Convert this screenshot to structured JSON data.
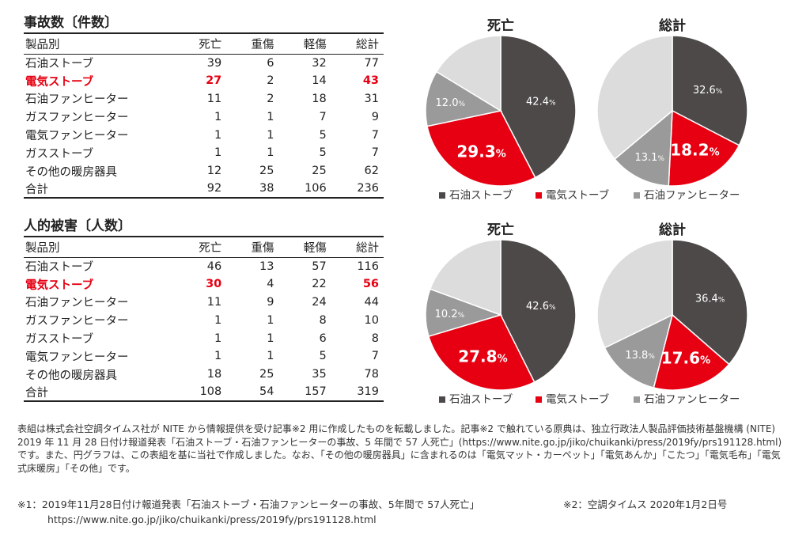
{
  "tables": [
    {
      "title": "事故数〔件数〕",
      "columns": [
        "製品別",
        "死亡",
        "重傷",
        "軽傷",
        "総計"
      ],
      "rows": [
        {
          "product": "石油ストーブ",
          "values": [
            39,
            6,
            32,
            77
          ],
          "highlight": false
        },
        {
          "product": "電気ストーブ",
          "values": [
            27,
            2,
            14,
            43
          ],
          "highlight": true
        },
        {
          "product": "石油ファンヒーター",
          "values": [
            11,
            2,
            18,
            31
          ],
          "highlight": false
        },
        {
          "product": "ガスファンヒーター",
          "values": [
            1,
            1,
            7,
            9
          ],
          "highlight": false
        },
        {
          "product": "電気ファンヒーター",
          "values": [
            1,
            1,
            5,
            7
          ],
          "highlight": false
        },
        {
          "product": "ガスストーブ",
          "values": [
            1,
            1,
            5,
            7
          ],
          "highlight": false
        },
        {
          "product": "その他の暖房器具",
          "values": [
            12,
            25,
            25,
            62
          ],
          "highlight": false
        },
        {
          "product": "合計",
          "values": [
            92,
            38,
            106,
            236
          ],
          "highlight": false
        }
      ]
    },
    {
      "title": "人的被害〔人数〕",
      "columns": [
        "製品別",
        "死亡",
        "重傷",
        "軽傷",
        "総計"
      ],
      "rows": [
        {
          "product": "石油ストーブ",
          "values": [
            46,
            13,
            57,
            116
          ],
          "highlight": false
        },
        {
          "product": "電気ストーブ",
          "values": [
            30,
            4,
            22,
            56
          ],
          "highlight": true
        },
        {
          "product": "石油ファンヒーター",
          "values": [
            11,
            9,
            24,
            44
          ],
          "highlight": false
        },
        {
          "product": "ガスファンヒーター",
          "values": [
            1,
            1,
            8,
            10
          ],
          "highlight": false
        },
        {
          "product": "ガスストーブ",
          "values": [
            1,
            1,
            6,
            8
          ],
          "highlight": false
        },
        {
          "product": "電気ファンヒーター",
          "values": [
            1,
            1,
            5,
            7
          ],
          "highlight": false
        },
        {
          "product": "その他の暖房器具",
          "values": [
            18,
            25,
            35,
            78
          ],
          "highlight": false
        },
        {
          "product": "合計",
          "values": [
            108,
            54,
            157,
            319
          ],
          "highlight": false
        }
      ]
    }
  ],
  "legend": [
    {
      "label": "石油ストーブ",
      "color": "#4d4949"
    },
    {
      "label": "電気ストーブ",
      "color": "#e60012"
    },
    {
      "label": "石油ファンヒーター",
      "color": "#9a9a9a"
    }
  ],
  "other_color": "#dcdcdc",
  "chart_data": [
    {
      "type": "pie",
      "title": "死亡",
      "group": "事故数",
      "labels": [
        "石油ストーブ",
        "電気ストーブ",
        "石油ファンヒーター",
        ""
      ],
      "values": [
        42.4,
        29.3,
        12.0,
        16.3
      ],
      "value_labels": [
        "42.4",
        "29.3",
        "12.0",
        ""
      ],
      "unit": "%"
    },
    {
      "type": "pie",
      "title": "総計",
      "group": "事故数",
      "labels": [
        "石油ストーブ",
        "電気ストーブ",
        "石油ファンヒーター",
        ""
      ],
      "values": [
        32.6,
        18.2,
        13.1,
        36.1
      ],
      "value_labels": [
        "32.6",
        "18.2",
        "13.1",
        ""
      ],
      "unit": "%"
    },
    {
      "type": "pie",
      "title": "死亡",
      "group": "人的被害",
      "labels": [
        "石油ストーブ",
        "電気ストーブ",
        "石油ファンヒーター",
        ""
      ],
      "values": [
        42.6,
        27.8,
        10.2,
        19.4
      ],
      "value_labels": [
        "42.6",
        "27.8",
        "10.2",
        ""
      ],
      "unit": "%"
    },
    {
      "type": "pie",
      "title": "総計",
      "group": "人的被害",
      "labels": [
        "石油ストーブ",
        "電気ストーブ",
        "石油ファンヒーター",
        ""
      ],
      "values": [
        36.4,
        17.6,
        13.8,
        32.2
      ],
      "value_labels": [
        "36.4",
        "17.6",
        "13.8",
        ""
      ],
      "unit": "%"
    }
  ],
  "footnote": "表組は株式会社空調タイムス社が NITE から情報提供を受け記事※2 用に作成したものを転載しました。記事※2 で触れている原典は、独立行政法人製品評価技術基盤機構 (NITE) 2019 年 11 月 28 日付け報道発表「石油ストーブ・石油ファンヒーターの事故、5 年間で 57 人死亡」(https://www.nite.go.jp/jiko/chuikanki/press/2019fy/prs191128.html) です。また、円グラフは、この表組を基に当社で作成しました。なお、「その他の暖房器具」に含まれるのは「電気マット・カーペット」「電気あんか」「こたつ」「電気毛布」「電気式床暖房」「その他」です。",
  "references": {
    "ref1_line1": "※1：2019年11月28日付け報道発表「石油ストーブ・石油ファンヒーターの事故、5年間で 57人死亡」",
    "ref1_line2": "https://www.nite.go.jp/jiko/chuikanki/press/2019fy/prs191128.html",
    "ref2": "※2：空調タイムス 2020年1月2日号"
  }
}
